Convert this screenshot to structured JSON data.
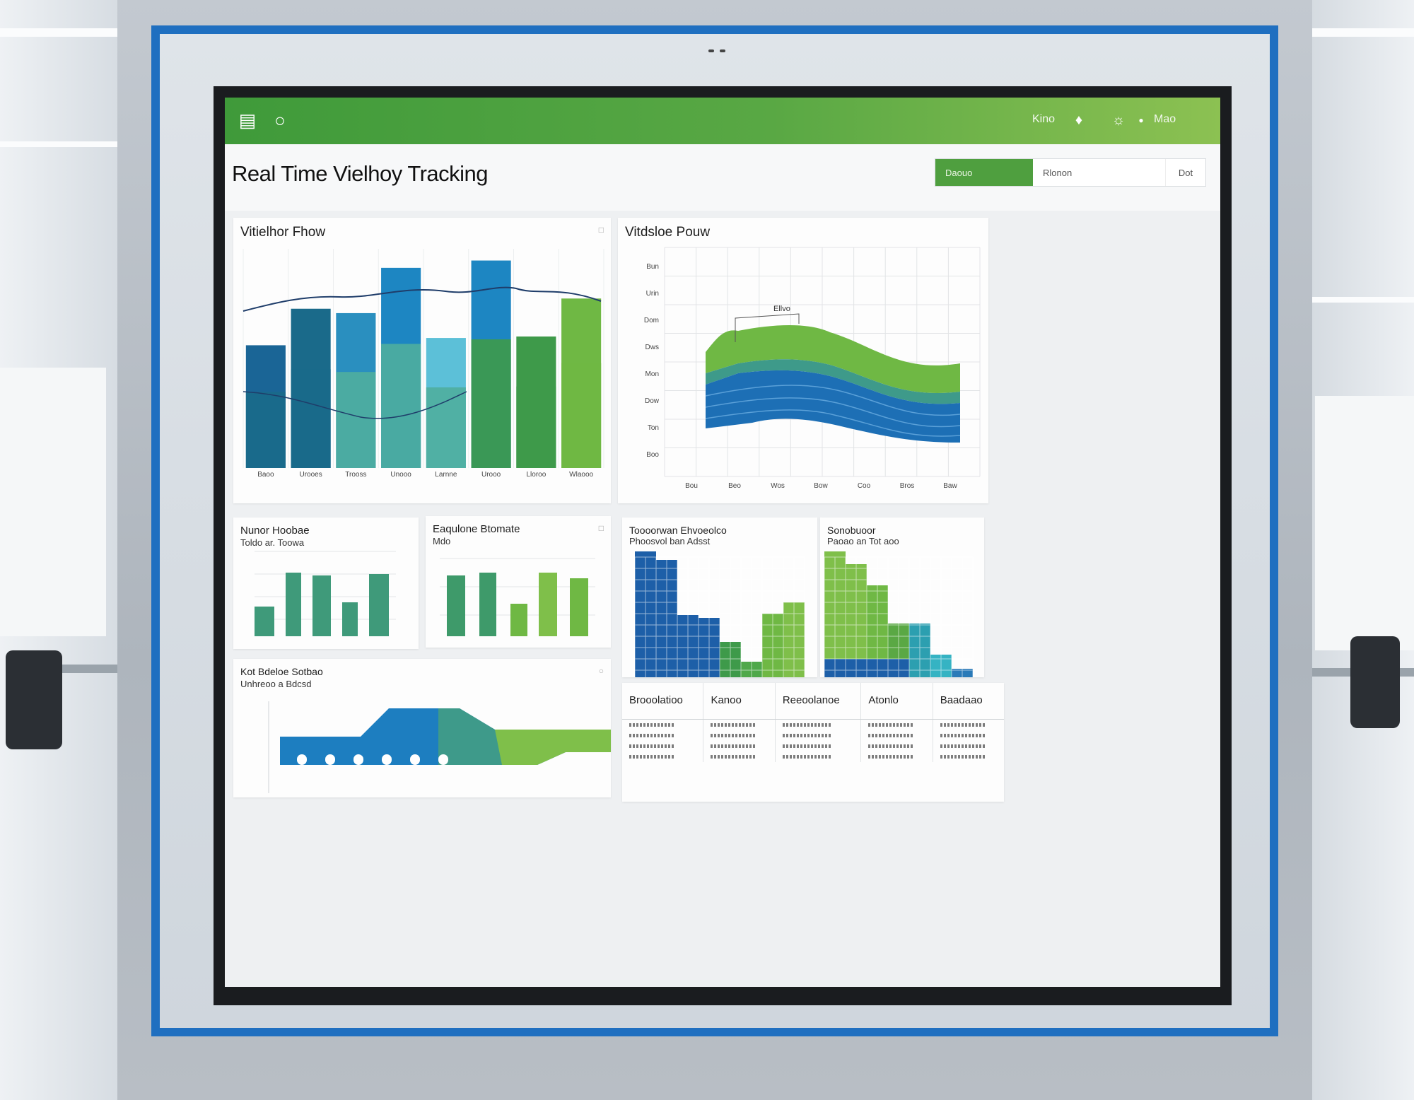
{
  "colors": {
    "header_green_start": "#3f9a3a",
    "header_green_end": "#8cc152",
    "blue_dark": "#1a6596",
    "blue": "#1d86c2",
    "teal": "#4fae9e",
    "green": "#6fb844",
    "bezel_blue": "#1f6fc0"
  },
  "header": {
    "left_icons": [
      "wallet-icon",
      "headset-icon"
    ],
    "right_text_1": "Kino",
    "right_icon_1": "bell-icon",
    "right_icon_2": "chat-icon",
    "right_text_2": "Mao"
  },
  "title_row": {
    "title": "Real Time Vielhoy Tracking",
    "seg_active": "Daouo",
    "seg_mid": "Rlonon",
    "seg_end": "Dot"
  },
  "panels": {
    "visitor_flow": {
      "title": "Vitielhor Fhow"
    },
    "visitor_pour": {
      "title": "Vitdsloe Pouw",
      "callout": "Ellvo"
    },
    "panel3": {
      "title": "Nunor Hoobae",
      "subtitle": "Toldo ar. Toowa"
    },
    "panel4": {
      "title": "Eaqulone Btomate",
      "subtitle": "Mdo"
    },
    "panel5": {
      "title": "Toooorwan Ehvoeolco",
      "subtitle": "Phoosvol ban Adsst"
    },
    "panel6": {
      "title": "Sonobuoor",
      "subtitle": "Paoao an Tot aoo"
    },
    "panel7": {
      "title": "Kot Bdeloe Sotbao",
      "subtitle": "Unhreoo a Bdcsd"
    }
  },
  "table": {
    "columns": [
      "Brooolatioo",
      "Kanoo",
      "Reeoolanoe",
      "Atonlo",
      "Baadaao"
    ]
  },
  "chart_data": [
    {
      "type": "bar",
      "title": "Vitielhor Fhow",
      "categories": [
        "Baoo",
        "Urooes",
        "Trooss",
        "Unooo",
        "Larnne",
        "Urooo",
        "Lloroo",
        "Wlaooo"
      ],
      "series": [
        {
          "values": [
            168,
            218,
            212,
            274,
            178,
            284,
            180,
            232
          ]
        }
      ]
    },
    {
      "type": "area",
      "title": "Vitdsloe Pouw",
      "x": [
        "Bou",
        "Beo",
        "Wos",
        "Bow",
        "Coo",
        "Bros",
        "Baw"
      ],
      "y_ticks": [
        "Bun",
        "Urin",
        "Dom",
        "Dws",
        "Mon",
        "Dow",
        "Ton",
        "Boo"
      ]
    }
  ]
}
